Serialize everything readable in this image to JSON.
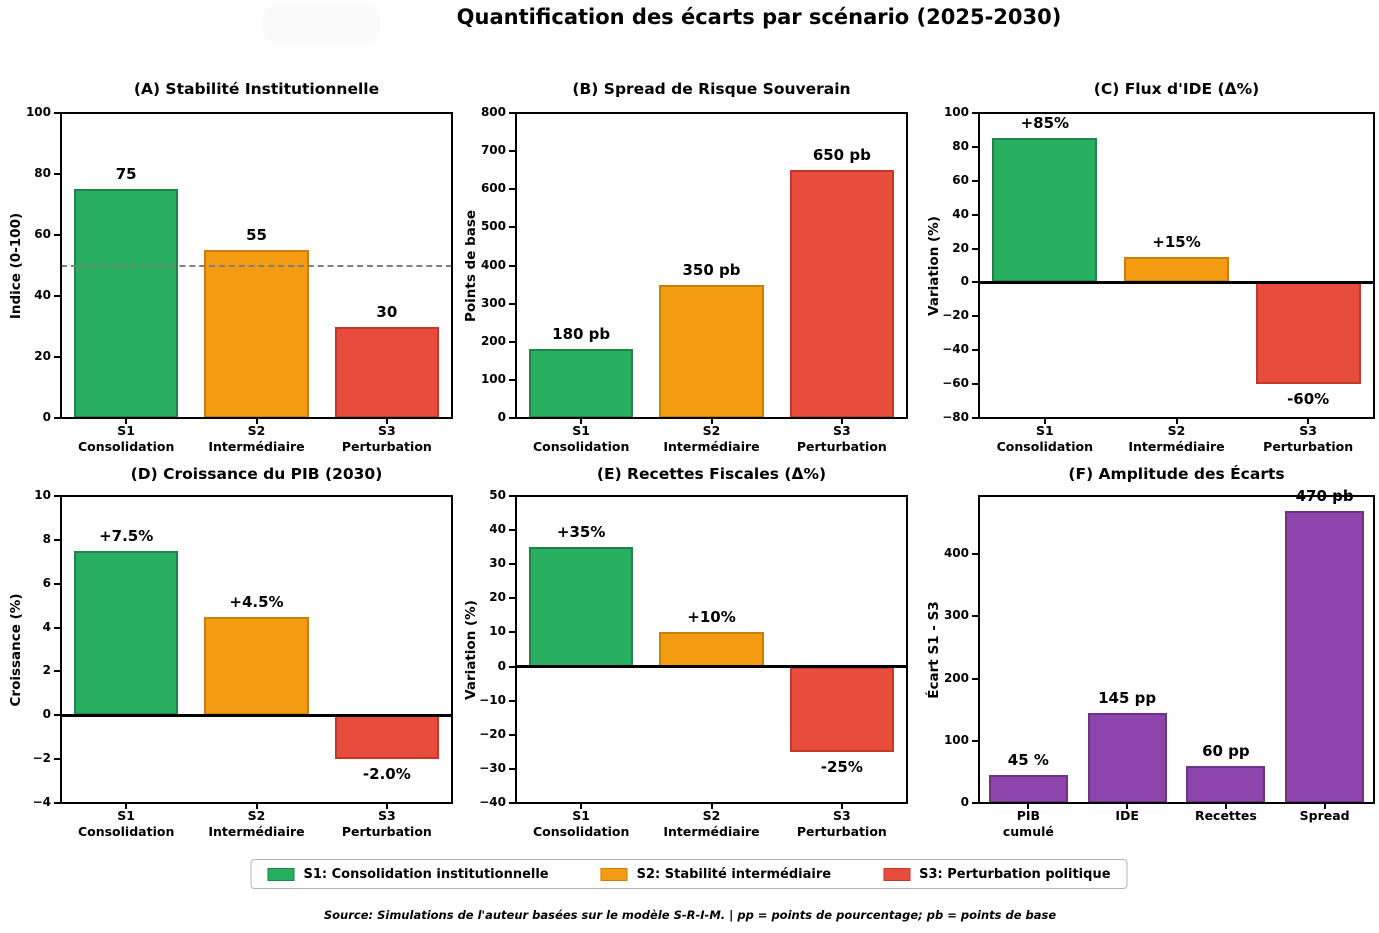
{
  "title": "Quantification des écarts par scénario (2025-2030)",
  "footer": "Source: Simulations de l'auteur basées sur le modèle S-R-I-M. | pp = points de pourcentage; pb = points de base",
  "legend": {
    "items": [
      {
        "label": "S1: Consolidation institutionnelle",
        "color": "#27AE60",
        "edge": "#1E8449"
      },
      {
        "label": "S2: Stabilité intermédiaire",
        "color": "#F39C12",
        "edge": "#C87F0E"
      },
      {
        "label": "S3: Perturbation politique",
        "color": "#E74C3C",
        "edge": "#C0392B"
      }
    ]
  },
  "chart_data": [
    {
      "id": "A",
      "type": "bar",
      "title": "(A) Stabilité Institutionnelle",
      "ylabel": "Indice (0-100)",
      "categories": [
        [
          "S1",
          "Consolidation"
        ],
        [
          "S2",
          "Intermédiaire"
        ],
        [
          "S3",
          "Perturbation"
        ]
      ],
      "values": [
        75,
        55,
        30
      ],
      "bar_labels": [
        "75",
        "55",
        "30"
      ],
      "colors": [
        "#27AE60",
        "#F39C12",
        "#E74C3C"
      ],
      "edges": [
        "#1E8449",
        "#C87F0E",
        "#C0392B"
      ],
      "ylim": [
        0,
        100
      ],
      "yticks": [
        0,
        20,
        40,
        60,
        80,
        100
      ],
      "ref_line": {
        "y": 50,
        "style": "dashed",
        "color": "#7f7f7f"
      },
      "zero_line": false
    },
    {
      "id": "B",
      "type": "bar",
      "title": "(B) Spread de Risque Souverain",
      "ylabel": "Points de base",
      "categories": [
        [
          "S1",
          "Consolidation"
        ],
        [
          "S2",
          "Intermédiaire"
        ],
        [
          "S3",
          "Perturbation"
        ]
      ],
      "values": [
        180,
        350,
        650
      ],
      "bar_labels": [
        "180 pb",
        "350 pb",
        "650 pb"
      ],
      "colors": [
        "#27AE60",
        "#F39C12",
        "#E74C3C"
      ],
      "edges": [
        "#1E8449",
        "#C87F0E",
        "#C0392B"
      ],
      "ylim": [
        0,
        800
      ],
      "yticks": [
        0,
        100,
        200,
        300,
        400,
        500,
        600,
        700,
        800
      ],
      "ref_line": null,
      "zero_line": false
    },
    {
      "id": "C",
      "type": "bar",
      "title": "(C) Flux d'IDE (Δ%)",
      "ylabel": "Variation (%)",
      "categories": [
        [
          "S1",
          "Consolidation"
        ],
        [
          "S2",
          "Intermédiaire"
        ],
        [
          "S3",
          "Perturbation"
        ]
      ],
      "values": [
        85,
        15,
        -60
      ],
      "bar_labels": [
        "+85%",
        "+15%",
        "-60%"
      ],
      "colors": [
        "#27AE60",
        "#F39C12",
        "#E74C3C"
      ],
      "edges": [
        "#1E8449",
        "#C87F0E",
        "#C0392B"
      ],
      "ylim": [
        -80,
        100
      ],
      "yticks": [
        -80,
        -60,
        -40,
        -20,
        0,
        20,
        40,
        60,
        80,
        100
      ],
      "ref_line": null,
      "zero_line": true
    },
    {
      "id": "D",
      "type": "bar",
      "title": "(D) Croissance du PIB (2030)",
      "ylabel": "Croissance (%)",
      "categories": [
        [
          "S1",
          "Consolidation"
        ],
        [
          "S2",
          "Intermédiaire"
        ],
        [
          "S3",
          "Perturbation"
        ]
      ],
      "values": [
        7.5,
        4.5,
        -2.0
      ],
      "bar_labels": [
        "+7.5%",
        "+4.5%",
        "-2.0%"
      ],
      "colors": [
        "#27AE60",
        "#F39C12",
        "#E74C3C"
      ],
      "edges": [
        "#1E8449",
        "#C87F0E",
        "#C0392B"
      ],
      "ylim": [
        -4,
        10
      ],
      "yticks": [
        -4,
        -2,
        0,
        2,
        4,
        6,
        8,
        10
      ],
      "ref_line": null,
      "zero_line": true
    },
    {
      "id": "E",
      "type": "bar",
      "title": "(E) Recettes Fiscales (Δ%)",
      "ylabel": "Variation (%)",
      "categories": [
        [
          "S1",
          "Consolidation"
        ],
        [
          "S2",
          "Intermédiaire"
        ],
        [
          "S3",
          "Perturbation"
        ]
      ],
      "values": [
        35,
        10,
        -25
      ],
      "bar_labels": [
        "+35%",
        "+10%",
        "-25%"
      ],
      "colors": [
        "#27AE60",
        "#F39C12",
        "#E74C3C"
      ],
      "edges": [
        "#1E8449",
        "#C87F0E",
        "#C0392B"
      ],
      "ylim": [
        -40,
        50
      ],
      "yticks": [
        -40,
        -30,
        -20,
        -10,
        0,
        10,
        20,
        30,
        40,
        50
      ],
      "ref_line": null,
      "zero_line": true
    },
    {
      "id": "F",
      "type": "bar",
      "title": "(F) Amplitude des Écarts",
      "ylabel": "Écart S1 - S3",
      "categories": [
        [
          "PIB",
          "cumulé"
        ],
        [
          "IDE"
        ],
        [
          "Recettes"
        ],
        [
          "Spread"
        ]
      ],
      "values": [
        45,
        145,
        60,
        470
      ],
      "bar_labels": [
        "45 %",
        "145 pp",
        "60 pp",
        "470 pb"
      ],
      "colors": [
        "#8E44AD",
        "#8E44AD",
        "#8E44AD",
        "#8E44AD"
      ],
      "edges": [
        "#6C3483",
        "#6C3483",
        "#6C3483",
        "#6C3483"
      ],
      "ylim": [
        0,
        493.5
      ],
      "yticks": [
        0,
        100,
        200,
        300,
        400
      ],
      "ref_line": null,
      "zero_line": false
    }
  ]
}
